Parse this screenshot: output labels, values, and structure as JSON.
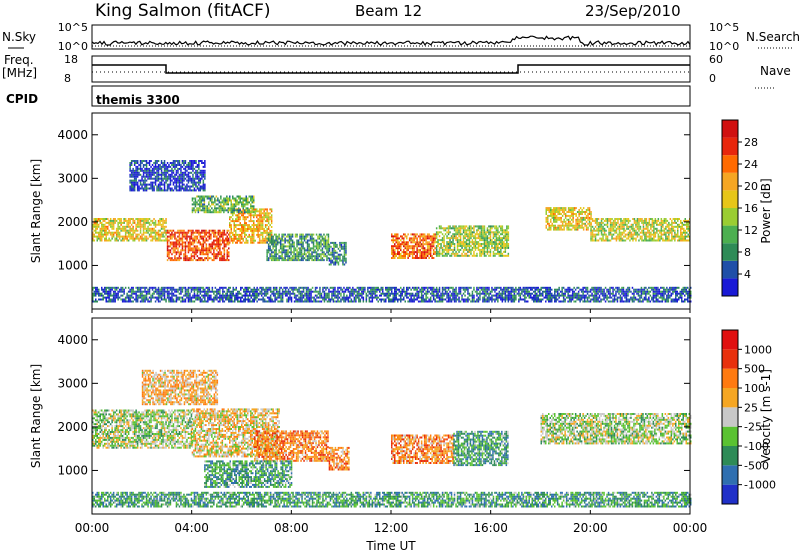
{
  "header": {
    "station": "King Salmon (fitACF)",
    "beam": "Beam 12",
    "date": "23/Sep/2010"
  },
  "noise_panel": {
    "left_label": "N.Sky",
    "right_label": "N.Search",
    "ticks": [
      "10^5",
      "10^0"
    ]
  },
  "freq_panel": {
    "left_label_line1": "Freq.",
    "left_label_line2": "[MHz]",
    "right_label": "Nave",
    "left_ticks": [
      "18",
      "8"
    ],
    "right_ticks": [
      "60",
      "0"
    ]
  },
  "cpid_panel": {
    "label": "CPID",
    "value": "themis 3300"
  },
  "x_axis": {
    "title": "Time UT",
    "ticks": [
      "00:00",
      "04:00",
      "08:00",
      "12:00",
      "16:00",
      "20:00",
      "00:00"
    ]
  },
  "chart_data": [
    {
      "type": "heatmap",
      "variable": "Power",
      "ylabel": "Slant Range [km]",
      "colorbar_label": "Power [dB]",
      "colorbar_ticks": [
        "28",
        "24",
        "20",
        "16",
        "12",
        "8",
        "4"
      ],
      "colors": [
        "#1a1ad6",
        "#1f4fa8",
        "#2e8b57",
        "#4caf50",
        "#9acd32",
        "#e6c619",
        "#f5a623",
        "#ff6a00",
        "#e8260c",
        "#d01010"
      ],
      "ylim": [
        0,
        4500
      ],
      "xlim": [
        0,
        24
      ],
      "y_ticks": [
        1000,
        2000,
        3000,
        4000
      ],
      "bands": [
        {
          "t0": 0.0,
          "t1": 3.0,
          "r0": 1550,
          "r1": 2050,
          "level": 0.55
        },
        {
          "t0": 3.0,
          "t1": 5.5,
          "r0": 1100,
          "r1": 1800,
          "level": 0.8
        },
        {
          "t0": 5.5,
          "t1": 7.2,
          "r0": 1500,
          "r1": 2300,
          "level": 0.6
        },
        {
          "t0": 4.0,
          "t1": 6.5,
          "r0": 2200,
          "r1": 2600,
          "level": 0.35
        },
        {
          "t0": 7.0,
          "t1": 9.5,
          "r0": 1100,
          "r1": 1700,
          "level": 0.3
        },
        {
          "t0": 9.5,
          "t1": 10.2,
          "r0": 1000,
          "r1": 1500,
          "level": 0.25
        },
        {
          "t0": 12.0,
          "t1": 13.8,
          "r0": 1150,
          "r1": 1700,
          "level": 0.75
        },
        {
          "t0": 13.8,
          "t1": 16.7,
          "r0": 1200,
          "r1": 1900,
          "level": 0.45
        },
        {
          "t0": 18.2,
          "t1": 20.0,
          "r0": 1800,
          "r1": 2300,
          "level": 0.55
        },
        {
          "t0": 20.0,
          "t1": 24.0,
          "r0": 1550,
          "r1": 2050,
          "level": 0.5
        },
        {
          "t0": 1.5,
          "t1": 4.5,
          "r0": 2700,
          "r1": 3400,
          "level": 0.1
        },
        {
          "t0": 0.0,
          "t1": 24.0,
          "r0": 150,
          "r1": 500,
          "level": 0.15
        }
      ]
    },
    {
      "type": "heatmap",
      "variable": "Velocity",
      "ylabel": "Slant Range [km]",
      "colorbar_label": "Velocity [m s-1]",
      "colorbar_ticks": [
        "1000",
        "500",
        "100",
        "25",
        "-25",
        "-100",
        "-500",
        "-1000"
      ],
      "colors": [
        "#2030c8",
        "#2f6fb0",
        "#2e8b57",
        "#5ac232",
        "#c8c8c8",
        "#f5a623",
        "#ff7a10",
        "#e8300c",
        "#e01010"
      ],
      "ylim": [
        0,
        4500
      ],
      "xlim": [
        0,
        24
      ],
      "y_ticks": [
        1000,
        2000,
        3000,
        4000
      ],
      "bands": [
        {
          "t0": 0.0,
          "t1": 4.0,
          "r0": 1500,
          "r1": 2400,
          "level": 0.45
        },
        {
          "t0": 4.0,
          "t1": 7.5,
          "r0": 1300,
          "r1": 2400,
          "level": 0.55
        },
        {
          "t0": 6.5,
          "t1": 9.5,
          "r0": 1200,
          "r1": 1900,
          "level": 0.7
        },
        {
          "t0": 4.5,
          "t1": 8.0,
          "r0": 600,
          "r1": 1200,
          "level": 0.3
        },
        {
          "t0": 9.5,
          "t1": 10.3,
          "r0": 1000,
          "r1": 1500,
          "level": 0.7
        },
        {
          "t0": 12.0,
          "t1": 14.5,
          "r0": 1150,
          "r1": 1800,
          "level": 0.68
        },
        {
          "t0": 14.5,
          "t1": 16.7,
          "r0": 1100,
          "r1": 1900,
          "level": 0.3
        },
        {
          "t0": 18.0,
          "t1": 24.0,
          "r0": 1600,
          "r1": 2300,
          "level": 0.45
        },
        {
          "t0": 2.0,
          "t1": 5.0,
          "r0": 2500,
          "r1": 3300,
          "level": 0.6
        },
        {
          "t0": 0.0,
          "t1": 24.0,
          "r0": 150,
          "r1": 500,
          "level": 0.3
        }
      ]
    }
  ]
}
